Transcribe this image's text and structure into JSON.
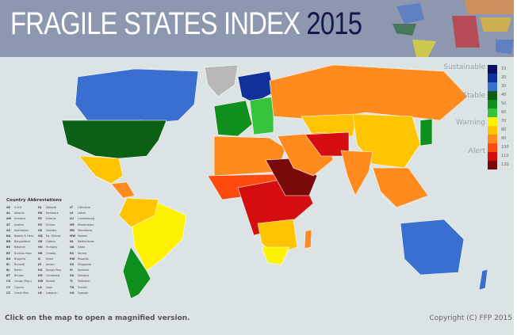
{
  "header": {
    "title": "FRAGILE STATES INDEX",
    "year": "2015"
  },
  "legend": {
    "categories": [
      "Sustainable",
      "Stable",
      "Warning",
      "Alert"
    ],
    "scale": [
      {
        "value": "10",
        "color": "#0a1060"
      },
      {
        "value": "20",
        "color": "#10309a"
      },
      {
        "value": "30",
        "color": "#3a6fd0"
      },
      {
        "value": "40",
        "color": "#0b6016"
      },
      {
        "value": "50",
        "color": "#0f8f1c"
      },
      {
        "value": "60",
        "color": "#36c23a"
      },
      {
        "value": "70",
        "color": "#fff200"
      },
      {
        "value": "80",
        "color": "#ffc400"
      },
      {
        "value": "90",
        "color": "#ff8a1e"
      },
      {
        "value": "100",
        "color": "#ff4a10"
      },
      {
        "value": "110",
        "color": "#d40e0e"
      },
      {
        "value": "120",
        "color": "#7a0a0a"
      }
    ]
  },
  "abbreviations": {
    "title": "Country Abbreviations",
    "columns": [
      [
        [
          "AE",
          "U.A.E."
        ],
        [
          "AL",
          "Albania"
        ],
        [
          "AM",
          "Armenia"
        ],
        [
          "AT",
          "Austria"
        ],
        [
          "AZ",
          "Azerbaijan"
        ],
        [
          "BA",
          "Bosnia & Herz."
        ],
        [
          "BD",
          "Bangladesh"
        ],
        [
          "BE",
          "Belgium"
        ],
        [
          "BF",
          "Burkina Faso"
        ],
        [
          "BG",
          "Bulgaria"
        ],
        [
          "BI",
          "Burundi"
        ],
        [
          "BJ",
          "Benin"
        ],
        [
          "BT",
          "Bhutan"
        ],
        [
          "CG",
          "Congo (Rep.)"
        ],
        [
          "CY",
          "Cyprus"
        ],
        [
          "CZ",
          "Czech Rep."
        ]
      ],
      [
        [
          "DJ",
          "Djibouti"
        ],
        [
          "DK",
          "Denmark"
        ],
        [
          "EE",
          "Estonia"
        ],
        [
          "ER",
          "Eritrea"
        ],
        [
          "GE",
          "Georgia"
        ],
        [
          "GQ",
          "Eq. Guinea"
        ],
        [
          "GR",
          "Greece"
        ],
        [
          "HU",
          "Hungary"
        ],
        [
          "HR",
          "Croatia"
        ],
        [
          "IL",
          "Israel"
        ],
        [
          "JO",
          "Jordan"
        ],
        [
          "KG",
          "Kyrgyz Rep."
        ],
        [
          "KH",
          "Cambodia"
        ],
        [
          "KW",
          "Kuwait"
        ],
        [
          "LA",
          "Laos"
        ],
        [
          "LB",
          "Lebanon"
        ]
      ],
      [
        [
          "LT",
          "Lithuania"
        ],
        [
          "LV",
          "Latvia"
        ],
        [
          "LU",
          "Luxembourg"
        ],
        [
          "ME",
          "Montenegro"
        ],
        [
          "MK",
          "Macedonia"
        ],
        [
          "MW",
          "Malawi"
        ],
        [
          "NL",
          "Netherlands"
        ],
        [
          "QA",
          "Qatar"
        ],
        [
          "RS",
          "Serbia"
        ],
        [
          "RW",
          "Rwanda"
        ],
        [
          "SG",
          "Singapore"
        ],
        [
          "SI",
          "Slovenia"
        ],
        [
          "SK",
          "Slovakia"
        ],
        [
          "TJ",
          "Tajikistan"
        ],
        [
          "TN",
          "Tunisia"
        ],
        [
          "UG",
          "Uganda"
        ]
      ]
    ]
  },
  "regions": [
    {
      "name": "greenland",
      "color": "#b8b8b8"
    },
    {
      "name": "canada",
      "color": "#3a6fd0"
    },
    {
      "name": "united-states",
      "color": "#0b6016"
    },
    {
      "name": "mexico",
      "color": "#ffc400"
    },
    {
      "name": "central-america",
      "color": "#ff8a1e"
    },
    {
      "name": "brazil",
      "color": "#fff200"
    },
    {
      "name": "northwest-south-america",
      "color": "#ffc400"
    },
    {
      "name": "southern-cone",
      "color": "#0f8f1c"
    },
    {
      "name": "western-europe",
      "color": "#0f8f1c"
    },
    {
      "name": "nordics",
      "color": "#10309a"
    },
    {
      "name": "eastern-europe",
      "color": "#36c23a"
    },
    {
      "name": "russia",
      "color": "#ff8a1e"
    },
    {
      "name": "central-asia",
      "color": "#ffc400"
    },
    {
      "name": "china",
      "color": "#ffc400"
    },
    {
      "name": "north-africa",
      "color": "#ff8a1e"
    },
    {
      "name": "sahel",
      "color": "#ff4a10"
    },
    {
      "name": "central-africa",
      "color": "#d40e0e"
    },
    {
      "name": "sudan-somalia",
      "color": "#7a0a0a"
    },
    {
      "name": "southern-africa",
      "color": "#ffc400"
    },
    {
      "name": "south-africa",
      "color": "#fff200"
    },
    {
      "name": "middle-east",
      "color": "#ff8a1e"
    },
    {
      "name": "iraq-afghanistan",
      "color": "#d40e0e"
    },
    {
      "name": "india",
      "color": "#ff8a1e"
    },
    {
      "name": "southeast-asia",
      "color": "#ff8a1e"
    },
    {
      "name": "japan",
      "color": "#0f8f1c"
    },
    {
      "name": "australia",
      "color": "#3a6fd0"
    },
    {
      "name": "new-zealand",
      "color": "#3a6fd0"
    },
    {
      "name": "madagascar",
      "color": "#ff8a1e"
    }
  ],
  "footer": {
    "note": "Click on the map to open a magnified version.",
    "copyright": "Copyright (C) FFP 2015"
  }
}
